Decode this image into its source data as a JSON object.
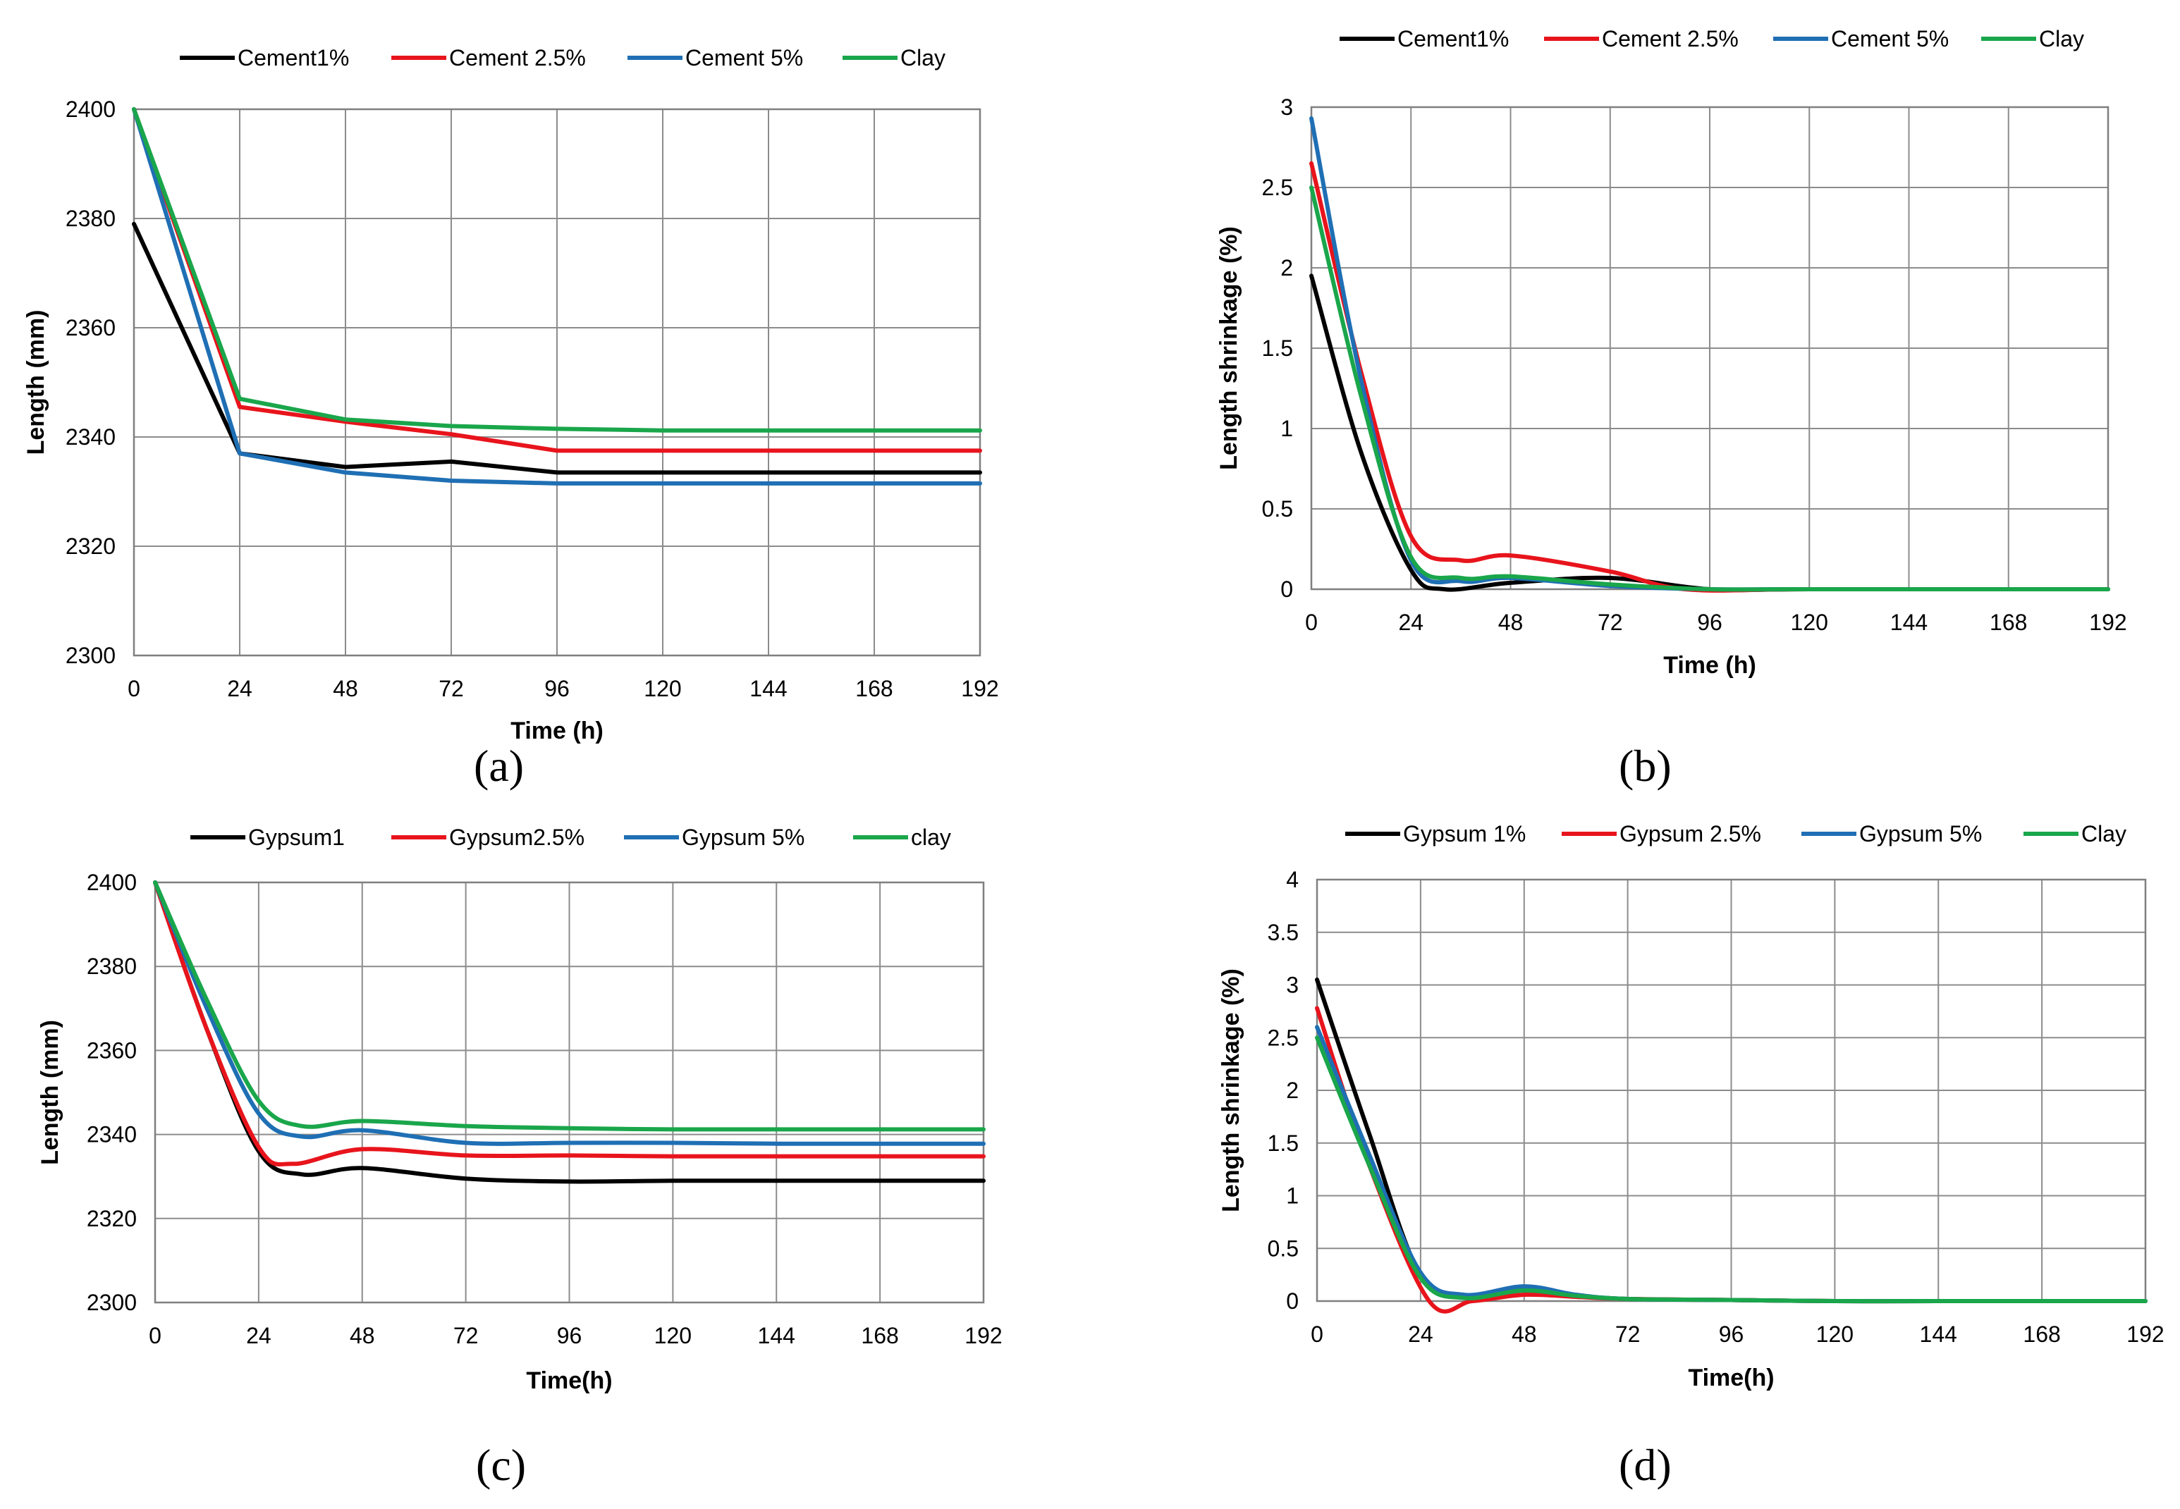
{
  "chart_data": [
    {
      "id": "a",
      "type": "line",
      "panel_label": "(a)",
      "title": "",
      "xlabel": "Time (h)",
      "ylabel": "Length  (mm)",
      "xlim": [
        0,
        192
      ],
      "ylim": [
        2300,
        2400
      ],
      "xticks": [
        0,
        24,
        48,
        72,
        96,
        120,
        144,
        168,
        192
      ],
      "xtick_labels": [
        "0",
        "24",
        "48",
        "72",
        "96",
        "120",
        "144",
        "168",
        "192"
      ],
      "yticks": [
        2300,
        2320,
        2340,
        2360,
        2380,
        2400
      ],
      "ytick_labels": [
        "2300",
        "2320",
        "2340",
        "2360",
        "2380",
        "2400"
      ],
      "grid": true,
      "legend_position": "top",
      "smooth": false,
      "series": [
        {
          "name": "Cement1%",
          "color": "#000000",
          "x": [
            0,
            24,
            48,
            72,
            96,
            120,
            144,
            168,
            192
          ],
          "y": [
            2379,
            2337,
            2334.5,
            2335.5,
            2333.5,
            2333.5,
            2333.5,
            2333.5,
            2333.5
          ]
        },
        {
          "name": "Cement 2.5%",
          "color": "#e8141c",
          "x": [
            0,
            24,
            48,
            72,
            96,
            120,
            144,
            168,
            192
          ],
          "y": [
            2400,
            2345.5,
            2342.8,
            2340.5,
            2337.5,
            2337.5,
            2337.5,
            2337.5,
            2337.5
          ]
        },
        {
          "name": "Cement 5%",
          "color": "#1f6fb4",
          "x": [
            0,
            24,
            48,
            72,
            96,
            120,
            144,
            168,
            192
          ],
          "y": [
            2400,
            2337,
            2333.5,
            2332,
            2331.5,
            2331.5,
            2331.5,
            2331.5,
            2331.5
          ]
        },
        {
          "name": "Clay",
          "color": "#1aa64b",
          "x": [
            0,
            24,
            48,
            72,
            96,
            120,
            144,
            168,
            192
          ],
          "y": [
            2400,
            2347,
            2343.2,
            2342,
            2341.5,
            2341.2,
            2341.2,
            2341.2,
            2341.2
          ]
        }
      ]
    },
    {
      "id": "b",
      "type": "line",
      "panel_label": "(b)",
      "title": "",
      "xlabel": "Time (h)",
      "ylabel": "Length shrinkage (%)",
      "xlim": [
        0,
        192
      ],
      "ylim": [
        0,
        3
      ],
      "xticks": [
        0,
        24,
        48,
        72,
        96,
        120,
        144,
        168,
        192
      ],
      "xtick_labels": [
        "0",
        "24",
        "48",
        "72",
        "96",
        "120",
        "144",
        "168",
        "192"
      ],
      "yticks": [
        0,
        0.5,
        1,
        1.5,
        2,
        2.5,
        3
      ],
      "ytick_labels": [
        "0",
        "0.5",
        "1",
        "1.5",
        "2",
        "2.5",
        "3"
      ],
      "grid": true,
      "legend_position": "top",
      "smooth": true,
      "series": [
        {
          "name": "Cement1%",
          "color": "#000000",
          "x": [
            0,
            12,
            24,
            32,
            48,
            72,
            96,
            120,
            192
          ],
          "y": [
            1.95,
            0.85,
            0.12,
            0.0,
            0.04,
            0.07,
            0.0,
            0.0,
            0.0
          ]
        },
        {
          "name": "Cement 2.5%",
          "color": "#e8141c",
          "x": [
            0,
            12,
            24,
            36,
            48,
            72,
            90,
            120,
            192
          ],
          "y": [
            2.65,
            1.35,
            0.33,
            0.18,
            0.21,
            0.11,
            0.0,
            0.0,
            0.0
          ]
        },
        {
          "name": "Cement 5%",
          "color": "#1f6fb4",
          "x": [
            0,
            12,
            24,
            36,
            48,
            72,
            96,
            120,
            192
          ],
          "y": [
            2.93,
            1.3,
            0.18,
            0.05,
            0.07,
            0.02,
            0.0,
            0.0,
            0.0
          ]
        },
        {
          "name": "Clay",
          "color": "#1aa64b",
          "x": [
            0,
            12,
            24,
            36,
            48,
            72,
            96,
            120,
            192
          ],
          "y": [
            2.5,
            1.2,
            0.2,
            0.07,
            0.08,
            0.03,
            0.0,
            0.0,
            0.0
          ]
        }
      ]
    },
    {
      "id": "c",
      "type": "line",
      "panel_label": "(c)",
      "title": "",
      "xlabel": "Time(h)",
      "ylabel": "Length (mm)",
      "xlim": [
        0,
        192
      ],
      "ylim": [
        2300,
        2400
      ],
      "xticks": [
        0,
        24,
        48,
        72,
        96,
        120,
        144,
        168,
        192
      ],
      "xtick_labels": [
        "0",
        "24",
        "48",
        "72",
        "96",
        "120",
        "144",
        "168",
        "192"
      ],
      "yticks": [
        2300,
        2320,
        2340,
        2360,
        2380,
        2400
      ],
      "ytick_labels": [
        "2300",
        "2320",
        "2340",
        "2360",
        "2380",
        "2400"
      ],
      "grid": true,
      "legend_position": "top",
      "smooth": true,
      "series": [
        {
          "name": "Gypsum1",
          "color": "#000000",
          "x": [
            0,
            12,
            24,
            34,
            48,
            72,
            96,
            120,
            144,
            168,
            192
          ],
          "y": [
            2400,
            2365,
            2336,
            2330.5,
            2332,
            2329.5,
            2328.8,
            2329,
            2329,
            2329,
            2329
          ]
        },
        {
          "name": "Gypsum2.5%",
          "color": "#e8141c",
          "x": [
            0,
            12,
            24,
            32,
            48,
            72,
            96,
            120,
            144,
            168,
            192
          ],
          "y": [
            2400,
            2365,
            2337,
            2333,
            2336.5,
            2335,
            2335,
            2334.8,
            2334.8,
            2334.8,
            2334.8
          ]
        },
        {
          "name": "Gypsum 5%",
          "color": "#1f6fb4",
          "x": [
            0,
            12,
            24,
            34,
            48,
            72,
            96,
            120,
            144,
            168,
            192
          ],
          "y": [
            2400,
            2370,
            2345,
            2339.5,
            2341,
            2338,
            2338,
            2338,
            2337.8,
            2337.8,
            2337.8
          ]
        },
        {
          "name": "clay",
          "color": "#1aa64b",
          "x": [
            0,
            12,
            24,
            34,
            48,
            72,
            96,
            120,
            144,
            168,
            192
          ],
          "y": [
            2400,
            2372,
            2348,
            2342,
            2343.2,
            2342,
            2341.5,
            2341.2,
            2341.2,
            2341.2,
            2341.2
          ]
        }
      ]
    },
    {
      "id": "d",
      "type": "line",
      "panel_label": "(d)",
      "title": "",
      "xlabel": "Time(h)",
      "ylabel": "Length shrinkage (%)",
      "xlim": [
        0,
        192
      ],
      "ylim": [
        0,
        4
      ],
      "xticks": [
        0,
        24,
        48,
        72,
        96,
        120,
        144,
        168,
        192
      ],
      "xtick_labels": [
        "0",
        "24",
        "48",
        "72",
        "96",
        "120",
        "144",
        "168",
        "192"
      ],
      "yticks": [
        0,
        0.5,
        1,
        1.5,
        2,
        2.5,
        3,
        3.5,
        4
      ],
      "ytick_labels": [
        "0",
        "0.5",
        "1",
        "1.5",
        "2",
        "2.5",
        "3",
        "3.5",
        "4"
      ],
      "grid": true,
      "legend_position": "top",
      "smooth": true,
      "series": [
        {
          "name": "Gypsum 1%",
          "color": "#000000",
          "x": [
            0,
            12,
            24,
            36,
            48,
            60,
            72,
            96,
            120,
            144,
            192
          ],
          "y": [
            3.05,
            1.6,
            0.25,
            0.05,
            0.1,
            0.05,
            0.02,
            0.01,
            0.0,
            0.0,
            0.0
          ]
        },
        {
          "name": "Gypsum 2.5%",
          "color": "#e8141c",
          "x": [
            0,
            12,
            26,
            36,
            48,
            60,
            72,
            96,
            120,
            144,
            192
          ],
          "y": [
            2.78,
            1.3,
            0.0,
            0.0,
            0.06,
            0.04,
            0.02,
            0.01,
            0.0,
            0.0,
            0.0
          ]
        },
        {
          "name": "Gypsum 5%",
          "color": "#1f6fb4",
          "x": [
            0,
            12,
            24,
            34,
            48,
            60,
            72,
            96,
            120,
            144,
            192
          ],
          "y": [
            2.6,
            1.4,
            0.27,
            0.06,
            0.14,
            0.06,
            0.02,
            0.01,
            0.0,
            0.0,
            0.0
          ]
        },
        {
          "name": "Clay",
          "color": "#1aa64b",
          "x": [
            0,
            12,
            24,
            34,
            48,
            60,
            72,
            96,
            120,
            144,
            192
          ],
          "y": [
            2.5,
            1.3,
            0.22,
            0.03,
            0.1,
            0.05,
            0.02,
            0.01,
            0.0,
            0.0,
            0.0
          ]
        }
      ]
    }
  ]
}
